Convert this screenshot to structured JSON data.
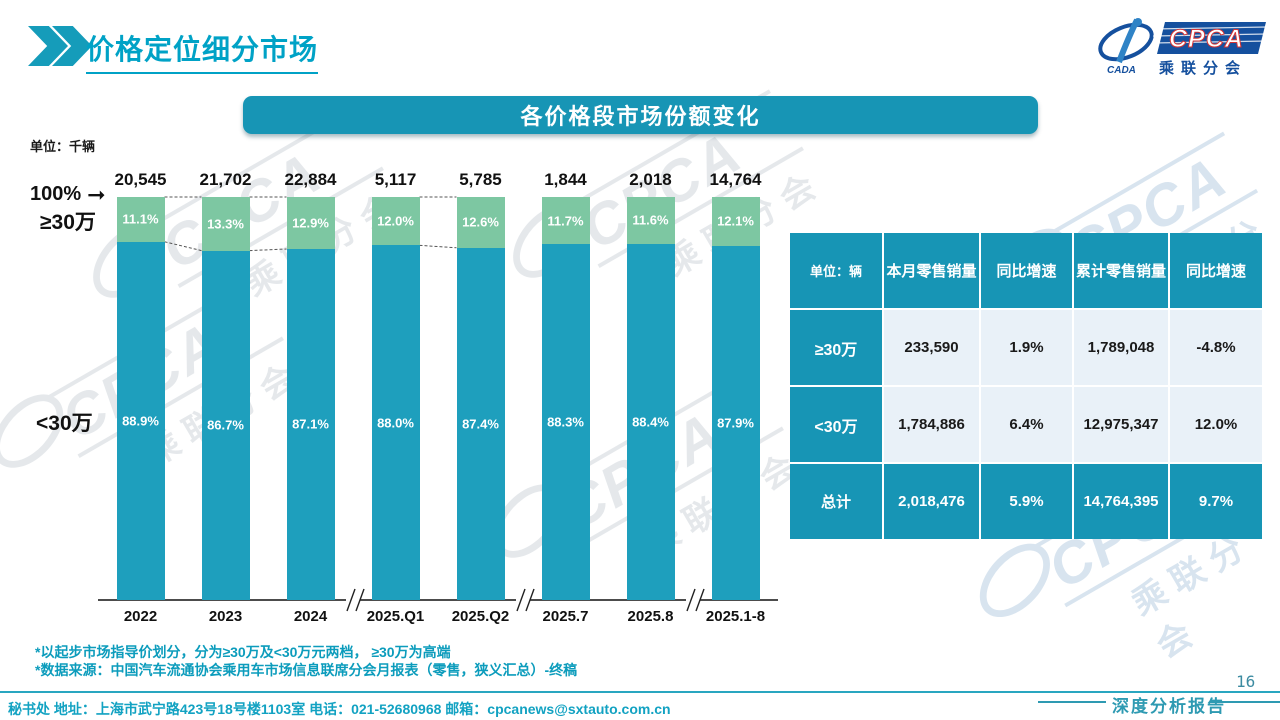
{
  "page": {
    "title": "价格定位细分市场",
    "page_number": "16",
    "report_label": "深度分析报告"
  },
  "logo": {
    "cpca": "CPCA",
    "club": "乘联分会",
    "emblem": "CADA"
  },
  "banner": {
    "title": "各价格段市场份额变化"
  },
  "watermark": {
    "cpca": "CPCA",
    "club": "乘联分会"
  },
  "chart_data": {
    "type": "bar",
    "stacked": true,
    "title": "各价格段市场份额变化",
    "unit_label": "单位：千辆",
    "axis_top_label": "100%",
    "left_label_high": "≥30万",
    "left_label_low": "<30万",
    "categories": [
      "2022",
      "2023",
      "2024",
      "2025.Q1",
      "2025.Q2",
      "2025.7",
      "2025.8",
      "2025.1-8"
    ],
    "totals": [
      "20,545",
      "21,702",
      "22,884",
      "5,117",
      "5,785",
      "1,844",
      "2,018",
      "14,764"
    ],
    "series": [
      {
        "name": "≥30万",
        "color": "#7dc7a2",
        "values": [
          11.1,
          13.3,
          12.9,
          12.0,
          12.6,
          11.7,
          11.6,
          12.1
        ]
      },
      {
        "name": "<30万",
        "color": "#1e9fbd",
        "values": [
          88.9,
          86.7,
          87.1,
          88.0,
          87.4,
          88.3,
          88.4,
          87.9
        ]
      }
    ],
    "value_suffix": "%",
    "ylim": [
      0,
      100
    ],
    "connector_pairs": [
      [
        0,
        1
      ],
      [
        1,
        2
      ],
      [
        3,
        4
      ]
    ],
    "axis_breaks_after": [
      2,
      4,
      6
    ],
    "grid": false,
    "legend": "none"
  },
  "table": {
    "headers": [
      "单位：辆",
      "本月零售销量",
      "同比增速",
      "累计零售销量",
      "同比增速"
    ],
    "rows": [
      {
        "label": "≥30万",
        "cells": [
          "233,590",
          "1.9%",
          "1,789,048",
          "-4.8%"
        ]
      },
      {
        "label": "<30万",
        "cells": [
          "1,784,886",
          "6.4%",
          "12,975,347",
          "12.0%"
        ]
      },
      {
        "label": "总计",
        "cells": [
          "2,018,476",
          "5.9%",
          "14,764,395",
          "9.7%"
        ]
      }
    ]
  },
  "notes": {
    "line1": "*以起步市场指导价划分，分为≥30万及<30万元两档， ≥30万为高端",
    "line2": "*数据来源：中国汽车流通协会乘用车市场信息联席分会月报表（零售，狭义汇总）-终稿"
  },
  "footer": {
    "secretariat": "秘书处  地址：上海市武宁路423号18号楼1103室 电话：021-52680968  邮箱：cpcanews@sxtauto.com.cn"
  },
  "colors": {
    "accent_teal": "#1795b5",
    "bar_teal": "#1e9fbd",
    "bar_green": "#7dc7a2",
    "title_cyan": "#00a2c6",
    "cell_bg": "#e9f1f8"
  }
}
